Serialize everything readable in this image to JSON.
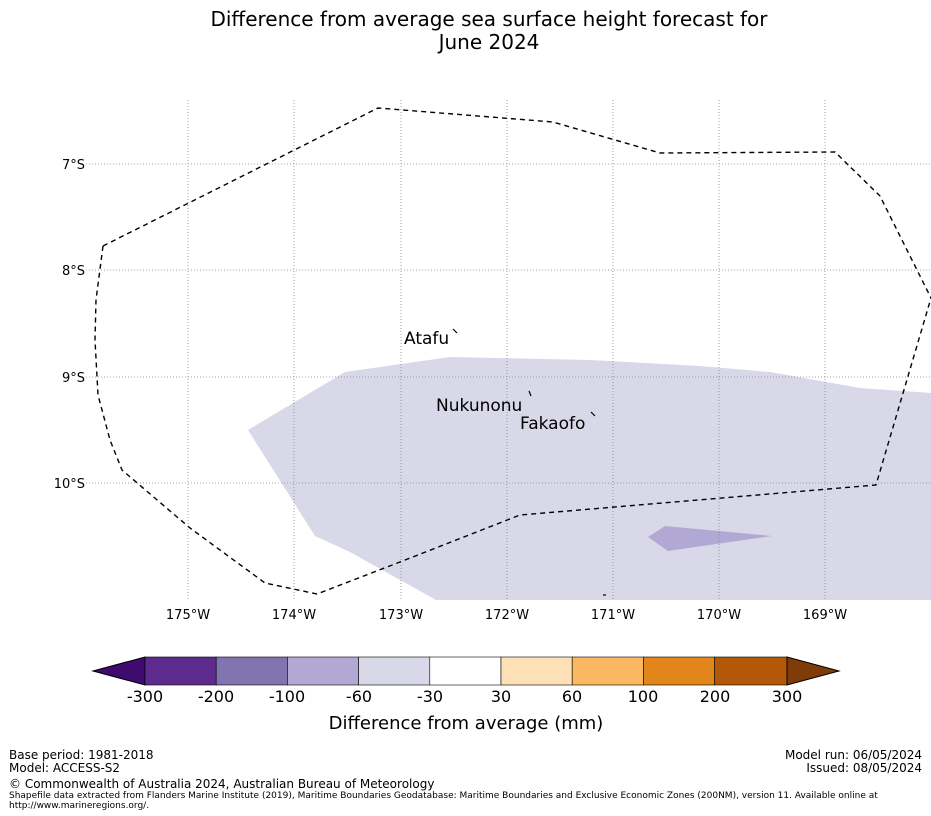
{
  "title": {
    "line1": "Difference from average sea surface height forecast for",
    "line2": "June 2024"
  },
  "map": {
    "lat_labels": [
      "7°S",
      "8°S",
      "9°S",
      "10°S"
    ],
    "lon_labels": [
      "175°W",
      "174°W",
      "173°W",
      "172°W",
      "171°W",
      "170°W",
      "169°W"
    ],
    "places": [
      "Atafu",
      "Nukunonu",
      "Fakaofo"
    ],
    "boundary": "EEZ (200NM)"
  },
  "colorbar": {
    "label": "Difference from average (mm)",
    "ticks": [
      "-300",
      "-200",
      "-100",
      "-60",
      "-30",
      "30",
      "60",
      "100",
      "200",
      "300"
    ],
    "colors": [
      "#3f0b6e",
      "#5c2b8d",
      "#8075b0",
      "#b1a9d3",
      "#d8d8e9",
      "#ffffff",
      "#fde0b6",
      "#fbb862",
      "#e2851b",
      "#b35808",
      "#7f3b08"
    ]
  },
  "footer": {
    "base_period": "Base period: 1981-2018",
    "model": "Model: ACCESS-S2",
    "copyright": "© Commonwealth of Australia 2024, Australian Bureau of Meteorology",
    "shapefile_line1": "Shapefile data extracted from Flanders Marine Institute (2019), Maritime Boundaries Geodatabase: Maritime Boundaries and Exclusive Economic Zones (200NM), version 11. Available online at",
    "shapefile_line2": "http://www.marineregions.org/.",
    "model_run": "Model run: 06/05/2024",
    "issued": "Issued: 08/05/2024"
  }
}
